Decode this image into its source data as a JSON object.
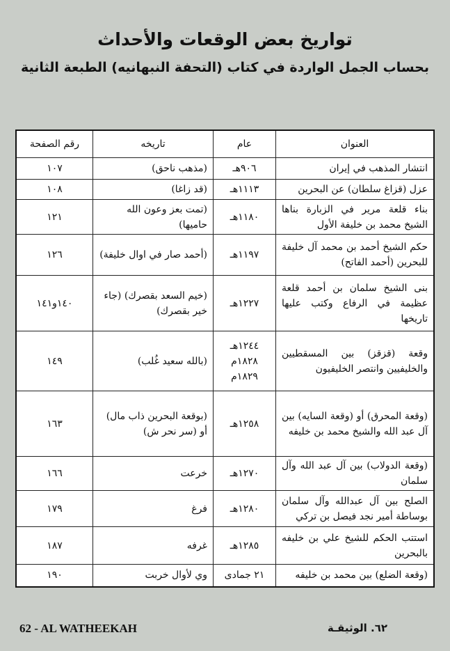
{
  "title": "تواريخ بعض الوقعات والأحداث",
  "subtitle": "بحساب الجمل الواردة في كتاب (التحفة النبهانيه) الطبعة الثانية",
  "table": {
    "headers": [
      "العنوان",
      "عام",
      "تاريخه",
      "رقم الصفحة"
    ],
    "rows": [
      {
        "title": "انتشار المذهب في إيران",
        "year": "٩٠٦هـ",
        "date": "(مذهب ناحق)",
        "page": "١٠٧"
      },
      {
        "title": "عزل (قزاغ سلطان) عن البحرين",
        "year": "١١١٣هـ",
        "date": "(قد زاغا)",
        "page": "١٠٨"
      },
      {
        "title": "بناء قلعة مرير في الزبارة بناها الشيخ محمد بن خليفة الأول",
        "year": "١١٨٠هـ",
        "date": "(تمت بعز وعون الله حاميها)",
        "page": "١٢١"
      },
      {
        "title": "حكم الشيخ أحمد بن محمد آل خليفة للبحرين (أحمد الفاتح)",
        "year": "١١٩٧هـ",
        "date": "(أحمد صار في اوال خليفة)",
        "page": "١٢٦"
      },
      {
        "title": "بنى الشيخ سلمان بن أحمد قلعة عظيمة في الرفاع وكتب عليها تاريخها",
        "year": "١٢٢٧هـ",
        "date": "(خيم السعد بقصرك) (جاء خير بقصرك)",
        "page": "١٤٠و١٤١"
      },
      {
        "title": "وقعة (قزقز) بين المسقطيين والخليفيين وانتصر الخليفيون",
        "year": "١٢٤٤هـ ١٨٢٨م ١٨٢٩م",
        "date": "(بالله سعيد غُلب)",
        "page": "١٤٩"
      },
      {
        "title": "(وقعة المحرق) أو (وقعة السايه) بين آل عبد الله والشيخ محمد بن خليفه",
        "year": "١٢٥٨هـ",
        "date": "(بوقعة البحرين ذاب مال) أو (سر نحر ش)",
        "page": "١٦٣"
      },
      {
        "title": "(وقعة الدولاب) بين آل عبد الله وآل سلمان",
        "year": "١٢٧٠هـ",
        "date": "خرعت",
        "page": "١٦٦"
      },
      {
        "title": "الصلح بين آل عبدالله وآل سلمان بوساطة أمير نجد فيصل بن تركي",
        "year": "١٢٨٠هـ",
        "date": "فرغ",
        "page": "١٧٩"
      },
      {
        "title": "استتب الحكم للشيخ علي بن خليفه بالبحرين",
        "year": "١٢٨٥هـ",
        "date": "غرفه",
        "page": "١٨٧"
      },
      {
        "title": "(وقعة الضلع) بين محمد بن خليفه",
        "year": "٢١ جمادى",
        "date": "وي لأوال خربت",
        "page": "١٩٠"
      }
    ]
  },
  "footer": {
    "english": "62 - AL WATHEEKAH",
    "arabic": "٦٢. الوثيقـة"
  }
}
